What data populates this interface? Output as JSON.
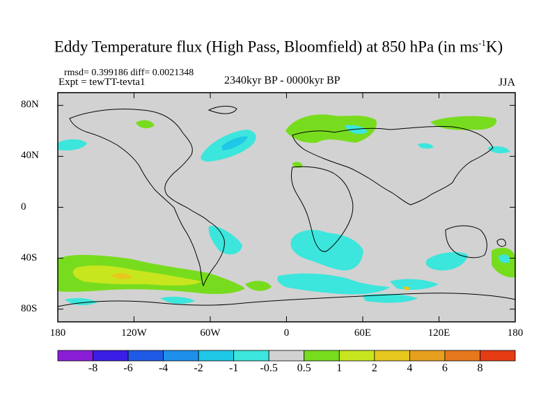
{
  "title": {
    "main": "Eddy Temperature flux (High Pass, Bloomfield) at 850 hPa (in ms",
    "sup": "-1",
    "tail": "K)"
  },
  "stats": "rmsd= 0.399186 diff= 0.0021348",
  "experiment": "Expt = tewTT-tevta1",
  "period": "2340kyr BP - 0000kyr BP",
  "season": "JJA",
  "axes": {
    "y_ticks": [
      {
        "lat": 80,
        "label": "80N"
      },
      {
        "lat": 40,
        "label": "40N"
      },
      {
        "lat": 0,
        "label": "0"
      },
      {
        "lat": -40,
        "label": "40S"
      },
      {
        "lat": -80,
        "label": "80S"
      }
    ],
    "x_ticks": [
      {
        "lon": -180,
        "label": "180"
      },
      {
        "lon": -120,
        "label": "120W"
      },
      {
        "lon": -60,
        "label": "60W"
      },
      {
        "lon": 0,
        "label": "0"
      },
      {
        "lon": 60,
        "label": "60E"
      },
      {
        "lon": 120,
        "label": "120E"
      },
      {
        "lon": 180,
        "label": "180"
      }
    ],
    "lon_range": [
      -180,
      180
    ],
    "lat_range": [
      -90,
      90
    ]
  },
  "colorbar": {
    "colors": [
      "#8a1ed6",
      "#3a1ee6",
      "#1e5ae6",
      "#1e90ea",
      "#1ec8e6",
      "#3ce6dc",
      "#d2d2d2",
      "#78dc1e",
      "#c8e61e",
      "#e6c81e",
      "#e6a01e",
      "#e6781e",
      "#e63c14"
    ],
    "labels": [
      "-8",
      "-6",
      "-4",
      "-2",
      "-1",
      "-0.5",
      "0.5",
      "1",
      "2",
      "4",
      "6",
      "8"
    ]
  },
  "map_colors": {
    "background": "#d2d2d2",
    "cyan": "#3ce6dc",
    "lightblue": "#1ec8e6",
    "green": "#78dc1e",
    "yellow": "#c8e61e",
    "orange": "#e6c81e"
  }
}
